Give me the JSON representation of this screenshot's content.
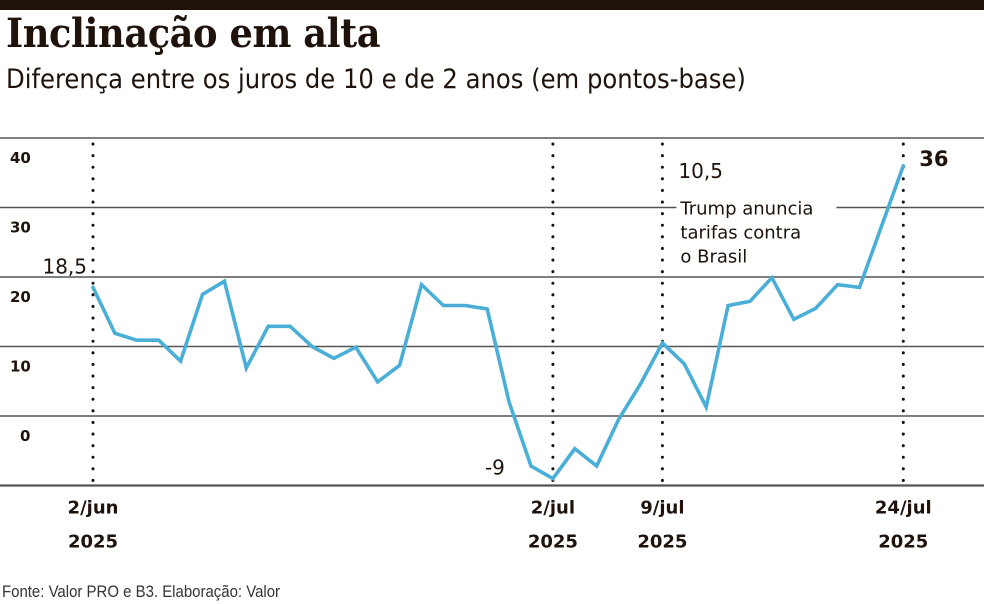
{
  "header": {
    "title": "Inclinação em alta",
    "subtitle": "Diferença entre os juros de 10 e de 2 anos (em pontos-base)"
  },
  "footer": {
    "source": "Fonte: Valor PRO e B3. Elaboração: Valor"
  },
  "colors": {
    "line": "#4aaed6",
    "grid": "#555555",
    "text": "#1e120a",
    "topbar": "#1e120a"
  },
  "chart_data": {
    "type": "line",
    "title": "Inclinação em alta",
    "subtitle": "Diferença entre os juros de 10 e de 2 anos (em pontos-base)",
    "xlabel": "",
    "ylabel": "pontos-base",
    "ylim": [
      -10,
      40
    ],
    "yticks": [
      0,
      10,
      20,
      30,
      40
    ],
    "ytick_labels": [
      "0",
      "10",
      "20",
      "30",
      "40"
    ],
    "grid": true,
    "x_unit": "business-day index from 2/jun/2025",
    "x_ticks": [
      {
        "x": 0,
        "label": "2/jun",
        "year": "2025"
      },
      {
        "x": 21,
        "label": "2/jul",
        "year": "2025"
      },
      {
        "x": 26,
        "label": "9/jul",
        "year": "2025"
      },
      {
        "x": 37,
        "label": "24/jul",
        "year": "2025"
      }
    ],
    "series": [
      {
        "name": "Diferença 10 anos - 2 anos",
        "x": [
          0,
          1,
          2,
          3,
          4,
          5,
          6,
          7,
          8,
          9,
          10,
          11,
          12,
          13,
          14,
          15,
          16,
          17,
          18,
          19,
          20,
          21,
          22,
          23,
          24,
          25,
          26,
          27,
          28,
          29,
          30,
          31,
          32,
          33,
          34,
          35,
          37
        ],
        "values": [
          18.5,
          11.9,
          10.9,
          10.9,
          7.9,
          17.5,
          19.4,
          6.9,
          12.9,
          12.9,
          10.0,
          8.3,
          9.9,
          4.9,
          7.3,
          18.9,
          15.9,
          15.9,
          15.4,
          2.0,
          -7.2,
          -9,
          -4.7,
          -7.2,
          -0.5,
          4.6,
          10.5,
          7.5,
          1.3,
          15.9,
          16.5,
          19.9,
          13.9,
          15.5,
          18.9,
          18.5,
          36
        ]
      }
    ],
    "annotations": [
      {
        "text": "18,5",
        "x": 0,
        "y": 18.5
      },
      {
        "text": "-9",
        "x": 21,
        "y": -9
      },
      {
        "text": "10,5",
        "x": 26,
        "y": 10.5
      },
      {
        "text": "36",
        "x": 37,
        "y": 36,
        "bold": true
      }
    ],
    "event_note": {
      "x": 26,
      "lines": [
        "Trump anuncia",
        "tarifas contra",
        "o Brasil"
      ]
    },
    "legend": "none"
  }
}
